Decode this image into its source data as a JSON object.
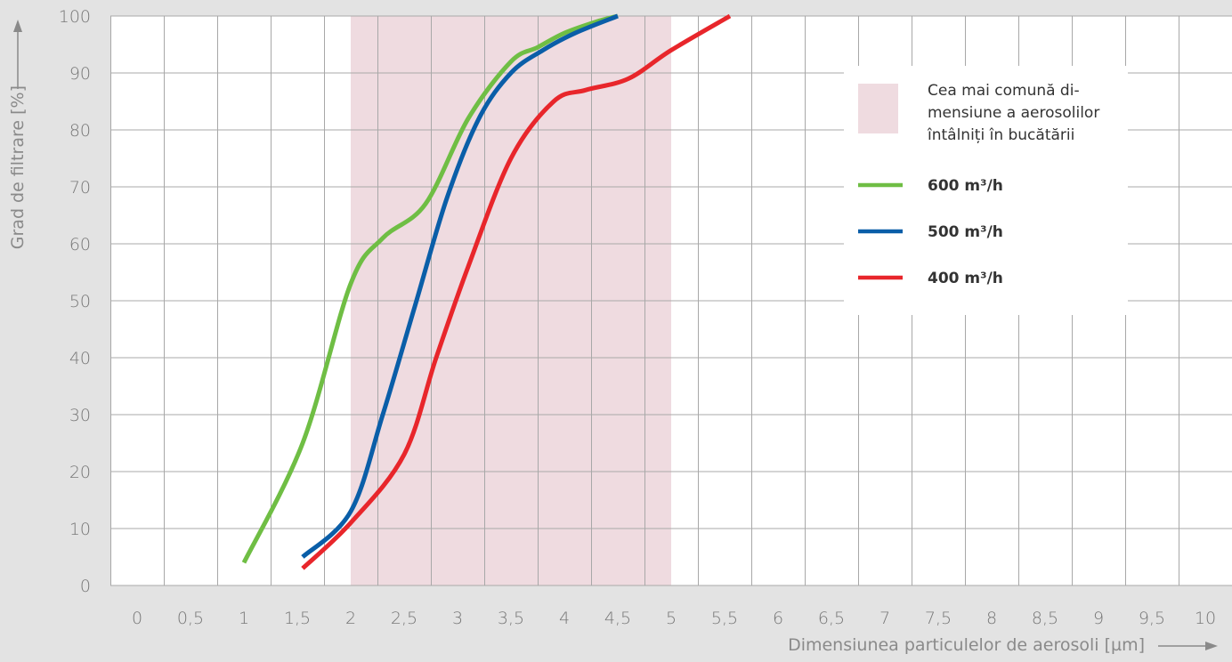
{
  "chart_data": {
    "type": "line",
    "title": "",
    "xlabel": "Dimensiunea particulelor de aerosoli [µm]",
    "ylabel": "Grad de filtrare [%]",
    "xlim": [
      -0.25,
      10.25
    ],
    "ylim": [
      0,
      100
    ],
    "x_ticks": [
      0,
      0.5,
      1,
      1.5,
      2,
      2.5,
      3,
      3.5,
      4,
      4.5,
      5,
      5.5,
      6,
      6.5,
      7,
      7.5,
      8,
      8.5,
      9,
      9.5,
      10
    ],
    "x_tick_labels": [
      "0",
      "0,5",
      "1",
      "1,5",
      "2",
      "2,5",
      "3",
      "3,5",
      "4",
      "4,5",
      "5",
      "5,5",
      "6",
      "6,5",
      "7",
      "7,5",
      "8",
      "8,5",
      "9",
      "9,5",
      "10"
    ],
    "y_ticks": [
      0,
      10,
      20,
      30,
      40,
      50,
      60,
      70,
      80,
      90,
      100
    ],
    "y_tick_labels": [
      "0",
      "10",
      "20",
      "30",
      "40",
      "50",
      "60",
      "70",
      "80",
      "90",
      "100"
    ],
    "grid": true,
    "legend_position": "top-right",
    "highlight_band": {
      "x_range": [
        2,
        5
      ],
      "color": "#efdbe0",
      "label": "Cea mai comună di- mensiune a aerosolilor întâlniți în bucătării",
      "label_lines": [
        "Cea mai comună di-",
        "mensiune a aerosolilor",
        "întâlniți în bucătării"
      ]
    },
    "series": [
      {
        "name": "600 m³/h",
        "color": "#6fbe44",
        "x": [
          1.0,
          1.55,
          2.0,
          2.3,
          2.7,
          3.1,
          3.5,
          3.75,
          4.0,
          4.3,
          4.5
        ],
        "y": [
          4,
          25,
          53,
          61,
          67,
          82,
          92,
          94.5,
          97,
          99,
          100
        ]
      },
      {
        "name": "500 m³/h",
        "color": "#0a5ea8",
        "x": [
          1.55,
          2.0,
          2.3,
          2.6,
          2.9,
          3.2,
          3.5,
          3.8,
          4.1,
          4.5
        ],
        "y": [
          5,
          13,
          30,
          49,
          68,
          82,
          90,
          94,
          97,
          100
        ]
      },
      {
        "name": "400 m³/h",
        "color": "#e8262b",
        "x": [
          1.55,
          2.0,
          2.5,
          2.8,
          3.1,
          3.5,
          3.9,
          4.2,
          4.6,
          5.0,
          5.55
        ],
        "y": [
          3,
          11,
          23,
          40,
          56,
          75,
          85,
          87,
          89,
          94,
          100
        ]
      }
    ]
  }
}
